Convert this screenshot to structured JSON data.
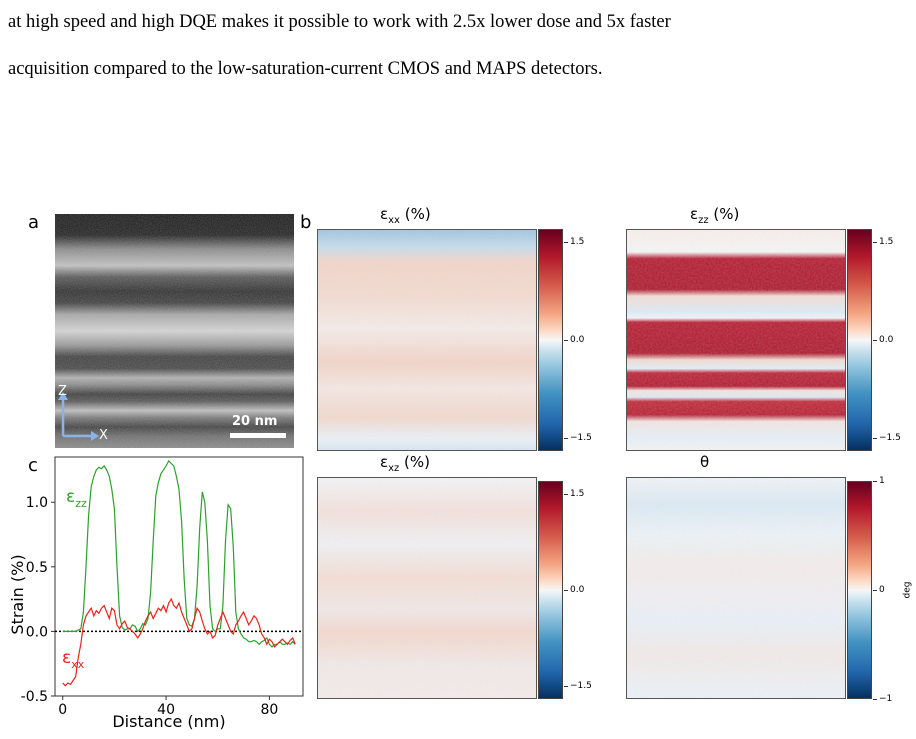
{
  "text": {
    "line1": "at high speed and high DQE makes it possible to work with 2.5x lower dose and 5x faster",
    "line2": "acquisition compared to the low-saturation-current CMOS and MAPS detectors."
  },
  "figure": {
    "panel_a": {
      "letter": "a",
      "axis_z": "Z",
      "axis_x": "X",
      "scale_bar": "20 nm"
    },
    "panel_b": {
      "letter": "b"
    },
    "panel_c": {
      "letter": "c"
    },
    "maps": [
      {
        "title_main": "ε",
        "title_sub": "xx",
        "title_suffix": " (%)",
        "ticks": [
          "1.5",
          "0.0",
          "−1.5"
        ],
        "unit": ""
      },
      {
        "title_main": "ε",
        "title_sub": "zz",
        "title_suffix": " (%)",
        "ticks": [
          "1.5",
          "0.0",
          "−1.5"
        ],
        "unit": ""
      },
      {
        "title_main": "ε",
        "title_sub": "xz",
        "title_suffix": " (%)",
        "ticks": [
          "1.5",
          "0.0",
          "−1.5"
        ],
        "unit": ""
      },
      {
        "title_main": "θ",
        "title_sub": "",
        "title_suffix": "",
        "ticks": [
          "1",
          "0",
          "−1"
        ],
        "unit": "deg"
      }
    ],
    "colors": {
      "ezz": "#2ca02c",
      "exx": "#e8231c"
    }
  },
  "chart_data": {
    "type": "line",
    "xlabel": "Distance (nm)",
    "ylabel": "Strain (%)",
    "xlim": [
      -3,
      93
    ],
    "ylim": [
      -0.5,
      1.35
    ],
    "xticks": [
      0,
      40,
      80
    ],
    "yticks": [
      -0.5,
      0.0,
      0.5,
      1.0
    ],
    "zero_line": "dotted",
    "series": [
      {
        "name_main": "ε",
        "name_sub": "zz",
        "color": "#2ca02c",
        "x": [
          0,
          3,
          5,
          7,
          8,
          9,
          10,
          11,
          12,
          13,
          14,
          15,
          16,
          17,
          18,
          19,
          20,
          21,
          22,
          23,
          24,
          25,
          26,
          27,
          28,
          29,
          30,
          31,
          32,
          33,
          34,
          35,
          36,
          37,
          38,
          39,
          40,
          41,
          42,
          43,
          44,
          45,
          46,
          47,
          48,
          49,
          50,
          51,
          52,
          53,
          54,
          55,
          56,
          57,
          58,
          59,
          60,
          61,
          62,
          63,
          64,
          65,
          66,
          67,
          68,
          69,
          70,
          71,
          72,
          73,
          74,
          75,
          76,
          77,
          78,
          79,
          80,
          81,
          82,
          83,
          84,
          85,
          86,
          87,
          88,
          89,
          90
        ],
        "y": [
          0.0,
          0.0,
          0.0,
          0.02,
          0.15,
          0.5,
          0.9,
          1.12,
          1.2,
          1.25,
          1.27,
          1.26,
          1.28,
          1.25,
          1.2,
          1.1,
          0.95,
          0.5,
          0.12,
          0.03,
          0.01,
          0.02,
          0.02,
          0.05,
          0.04,
          0.0,
          0.02,
          0.06,
          0.05,
          0.1,
          0.3,
          0.7,
          1.05,
          1.15,
          1.22,
          1.25,
          1.28,
          1.32,
          1.3,
          1.28,
          1.2,
          1.1,
          0.85,
          0.4,
          0.1,
          0.05,
          0.04,
          0.1,
          0.35,
          0.8,
          1.08,
          1.0,
          0.7,
          0.2,
          0.02,
          0.0,
          0.02,
          0.02,
          0.2,
          0.7,
          0.98,
          0.95,
          0.65,
          0.15,
          0.02,
          -0.02,
          -0.05,
          -0.06,
          -0.08,
          -0.08,
          -0.07,
          -0.08,
          -0.1,
          -0.08,
          -0.07,
          -0.05,
          -0.1,
          -0.12,
          -0.1,
          -0.1,
          -0.08,
          -0.1,
          -0.1,
          -0.09,
          -0.1,
          -0.08,
          -0.1
        ]
      },
      {
        "name_main": "ε",
        "name_sub": "xx",
        "color": "#e8231c",
        "x": [
          0,
          1,
          2,
          3,
          4,
          5,
          6,
          7,
          8,
          9,
          10,
          11,
          12,
          13,
          14,
          15,
          16,
          17,
          18,
          19,
          20,
          21,
          22,
          23,
          24,
          25,
          26,
          27,
          28,
          29,
          30,
          31,
          32,
          33,
          34,
          35,
          36,
          37,
          38,
          39,
          40,
          41,
          42,
          43,
          44,
          45,
          46,
          47,
          48,
          49,
          50,
          51,
          52,
          53,
          54,
          55,
          56,
          57,
          58,
          59,
          60,
          61,
          62,
          63,
          64,
          65,
          66,
          67,
          68,
          69,
          70,
          71,
          72,
          73,
          74,
          75,
          76,
          77,
          78,
          79,
          80,
          81,
          82,
          83,
          84,
          85,
          86,
          87,
          88,
          89,
          90
        ],
        "y": [
          -0.4,
          -0.42,
          -0.4,
          -0.41,
          -0.38,
          -0.35,
          -0.2,
          -0.1,
          0.05,
          0.12,
          0.15,
          0.18,
          0.12,
          0.16,
          0.14,
          0.18,
          0.2,
          0.15,
          0.1,
          0.18,
          0.16,
          0.05,
          0.02,
          0.06,
          0.08,
          0.03,
          0.02,
          0.0,
          -0.02,
          -0.05,
          -0.02,
          0.02,
          0.08,
          0.12,
          0.15,
          0.1,
          0.14,
          0.18,
          0.16,
          0.2,
          0.15,
          0.22,
          0.25,
          0.2,
          0.18,
          0.22,
          0.15,
          0.1,
          0.05,
          0.0,
          0.02,
          0.1,
          0.18,
          0.15,
          0.08,
          0.02,
          -0.02,
          0.0,
          -0.05,
          -0.03,
          0.05,
          0.1,
          0.15,
          0.1,
          0.05,
          0.0,
          -0.02,
          0.05,
          0.08,
          0.12,
          0.15,
          0.1,
          0.05,
          0.08,
          0.12,
          0.1,
          0.05,
          -0.02,
          -0.05,
          -0.1,
          -0.06,
          -0.08,
          -0.12,
          -0.1,
          -0.08,
          -0.06,
          -0.08,
          -0.1,
          -0.07,
          -0.05,
          -0.1
        ]
      }
    ]
  }
}
